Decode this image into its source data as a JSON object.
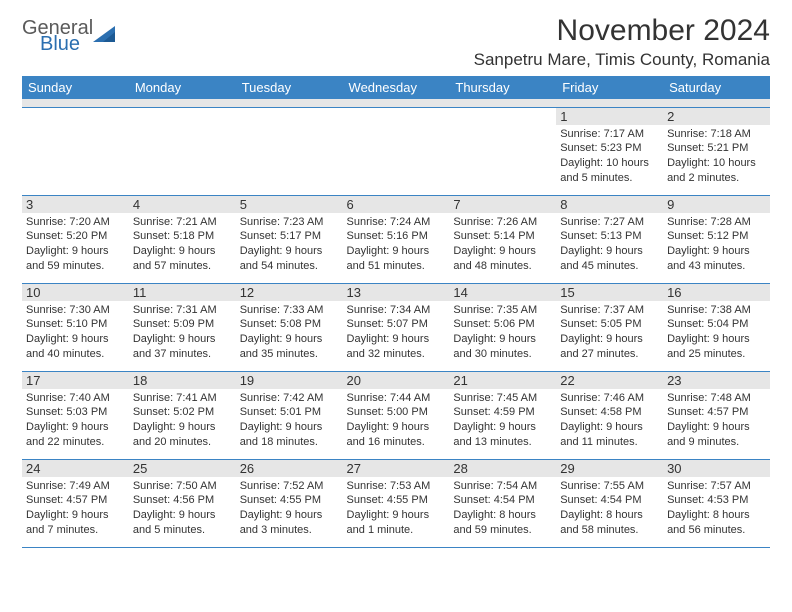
{
  "logo": {
    "general": "General",
    "blue": "Blue"
  },
  "title": "November 2024",
  "location": "Sanpetru Mare, Timis County, Romania",
  "colors": {
    "header_bg": "#3b84c4",
    "header_fg": "#ffffff",
    "shade": "#e6e6e6",
    "border": "#3b84c4",
    "text": "#333333",
    "logo_gray": "#5a5a5a",
    "logo_blue": "#2b6fb0",
    "background": "#ffffff"
  },
  "day_names": [
    "Sunday",
    "Monday",
    "Tuesday",
    "Wednesday",
    "Thursday",
    "Friday",
    "Saturday"
  ],
  "weeks": [
    [
      null,
      null,
      null,
      null,
      null,
      {
        "n": "1",
        "sr": "Sunrise: 7:17 AM",
        "ss": "Sunset: 5:23 PM",
        "dl": "Daylight: 10 hours and 5 minutes."
      },
      {
        "n": "2",
        "sr": "Sunrise: 7:18 AM",
        "ss": "Sunset: 5:21 PM",
        "dl": "Daylight: 10 hours and 2 minutes."
      }
    ],
    [
      {
        "n": "3",
        "sr": "Sunrise: 7:20 AM",
        "ss": "Sunset: 5:20 PM",
        "dl": "Daylight: 9 hours and 59 minutes."
      },
      {
        "n": "4",
        "sr": "Sunrise: 7:21 AM",
        "ss": "Sunset: 5:18 PM",
        "dl": "Daylight: 9 hours and 57 minutes."
      },
      {
        "n": "5",
        "sr": "Sunrise: 7:23 AM",
        "ss": "Sunset: 5:17 PM",
        "dl": "Daylight: 9 hours and 54 minutes."
      },
      {
        "n": "6",
        "sr": "Sunrise: 7:24 AM",
        "ss": "Sunset: 5:16 PM",
        "dl": "Daylight: 9 hours and 51 minutes."
      },
      {
        "n": "7",
        "sr": "Sunrise: 7:26 AM",
        "ss": "Sunset: 5:14 PM",
        "dl": "Daylight: 9 hours and 48 minutes."
      },
      {
        "n": "8",
        "sr": "Sunrise: 7:27 AM",
        "ss": "Sunset: 5:13 PM",
        "dl": "Daylight: 9 hours and 45 minutes."
      },
      {
        "n": "9",
        "sr": "Sunrise: 7:28 AM",
        "ss": "Sunset: 5:12 PM",
        "dl": "Daylight: 9 hours and 43 minutes."
      }
    ],
    [
      {
        "n": "10",
        "sr": "Sunrise: 7:30 AM",
        "ss": "Sunset: 5:10 PM",
        "dl": "Daylight: 9 hours and 40 minutes."
      },
      {
        "n": "11",
        "sr": "Sunrise: 7:31 AM",
        "ss": "Sunset: 5:09 PM",
        "dl": "Daylight: 9 hours and 37 minutes."
      },
      {
        "n": "12",
        "sr": "Sunrise: 7:33 AM",
        "ss": "Sunset: 5:08 PM",
        "dl": "Daylight: 9 hours and 35 minutes."
      },
      {
        "n": "13",
        "sr": "Sunrise: 7:34 AM",
        "ss": "Sunset: 5:07 PM",
        "dl": "Daylight: 9 hours and 32 minutes."
      },
      {
        "n": "14",
        "sr": "Sunrise: 7:35 AM",
        "ss": "Sunset: 5:06 PM",
        "dl": "Daylight: 9 hours and 30 minutes."
      },
      {
        "n": "15",
        "sr": "Sunrise: 7:37 AM",
        "ss": "Sunset: 5:05 PM",
        "dl": "Daylight: 9 hours and 27 minutes."
      },
      {
        "n": "16",
        "sr": "Sunrise: 7:38 AM",
        "ss": "Sunset: 5:04 PM",
        "dl": "Daylight: 9 hours and 25 minutes."
      }
    ],
    [
      {
        "n": "17",
        "sr": "Sunrise: 7:40 AM",
        "ss": "Sunset: 5:03 PM",
        "dl": "Daylight: 9 hours and 22 minutes."
      },
      {
        "n": "18",
        "sr": "Sunrise: 7:41 AM",
        "ss": "Sunset: 5:02 PM",
        "dl": "Daylight: 9 hours and 20 minutes."
      },
      {
        "n": "19",
        "sr": "Sunrise: 7:42 AM",
        "ss": "Sunset: 5:01 PM",
        "dl": "Daylight: 9 hours and 18 minutes."
      },
      {
        "n": "20",
        "sr": "Sunrise: 7:44 AM",
        "ss": "Sunset: 5:00 PM",
        "dl": "Daylight: 9 hours and 16 minutes."
      },
      {
        "n": "21",
        "sr": "Sunrise: 7:45 AM",
        "ss": "Sunset: 4:59 PM",
        "dl": "Daylight: 9 hours and 13 minutes."
      },
      {
        "n": "22",
        "sr": "Sunrise: 7:46 AM",
        "ss": "Sunset: 4:58 PM",
        "dl": "Daylight: 9 hours and 11 minutes."
      },
      {
        "n": "23",
        "sr": "Sunrise: 7:48 AM",
        "ss": "Sunset: 4:57 PM",
        "dl": "Daylight: 9 hours and 9 minutes."
      }
    ],
    [
      {
        "n": "24",
        "sr": "Sunrise: 7:49 AM",
        "ss": "Sunset: 4:57 PM",
        "dl": "Daylight: 9 hours and 7 minutes."
      },
      {
        "n": "25",
        "sr": "Sunrise: 7:50 AM",
        "ss": "Sunset: 4:56 PM",
        "dl": "Daylight: 9 hours and 5 minutes."
      },
      {
        "n": "26",
        "sr": "Sunrise: 7:52 AM",
        "ss": "Sunset: 4:55 PM",
        "dl": "Daylight: 9 hours and 3 minutes."
      },
      {
        "n": "27",
        "sr": "Sunrise: 7:53 AM",
        "ss": "Sunset: 4:55 PM",
        "dl": "Daylight: 9 hours and 1 minute."
      },
      {
        "n": "28",
        "sr": "Sunrise: 7:54 AM",
        "ss": "Sunset: 4:54 PM",
        "dl": "Daylight: 8 hours and 59 minutes."
      },
      {
        "n": "29",
        "sr": "Sunrise: 7:55 AM",
        "ss": "Sunset: 4:54 PM",
        "dl": "Daylight: 8 hours and 58 minutes."
      },
      {
        "n": "30",
        "sr": "Sunrise: 7:57 AM",
        "ss": "Sunset: 4:53 PM",
        "dl": "Daylight: 8 hours and 56 minutes."
      }
    ]
  ]
}
